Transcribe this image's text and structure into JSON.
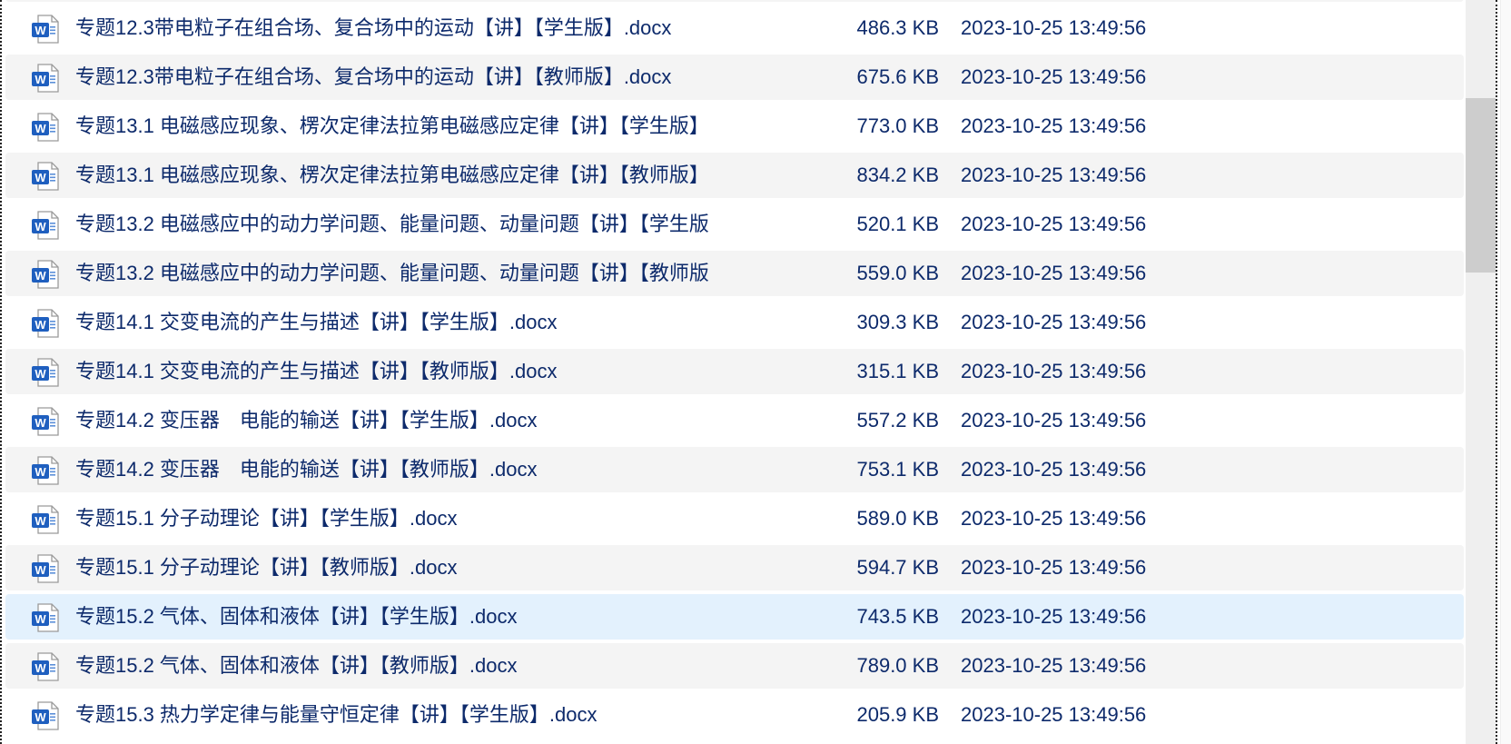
{
  "colors": {
    "text": "#0d2a6b",
    "row_alt": "#f4f4f4",
    "row_selected": "#e3f1fd",
    "word_icon": "#1f5fbf"
  },
  "icon": "word-docx-icon",
  "selected_index": 12,
  "scrollbar": {
    "thumb_position_fraction": 0.13
  },
  "files": [
    {
      "name": "专题12.3带电粒子在组合场、复合场中的运动【讲】【学生版】.docx",
      "size": "486.3 KB",
      "date": "2023-10-25 13:49:56"
    },
    {
      "name": "专题12.3带电粒子在组合场、复合场中的运动【讲】【教师版】.docx",
      "size": "675.6 KB",
      "date": "2023-10-25 13:49:56"
    },
    {
      "name": "专题13.1 电磁感应现象、楞次定律法拉第电磁感应定律【讲】【学生版】",
      "size": "773.0 KB",
      "date": "2023-10-25 13:49:56"
    },
    {
      "name": "专题13.1 电磁感应现象、楞次定律法拉第电磁感应定律【讲】【教师版】",
      "size": "834.2 KB",
      "date": "2023-10-25 13:49:56"
    },
    {
      "name": "专题13.2 电磁感应中的动力学问题、能量问题、动量问题【讲】【学生版",
      "size": "520.1 KB",
      "date": "2023-10-25 13:49:56"
    },
    {
      "name": "专题13.2 电磁感应中的动力学问题、能量问题、动量问题【讲】【教师版",
      "size": "559.0 KB",
      "date": "2023-10-25 13:49:56"
    },
    {
      "name": "专题14.1 交变电流的产生与描述【讲】【学生版】.docx",
      "size": "309.3 KB",
      "date": "2023-10-25 13:49:56"
    },
    {
      "name": "专题14.1 交变电流的产生与描述【讲】【教师版】.docx",
      "size": "315.1 KB",
      "date": "2023-10-25 13:49:56"
    },
    {
      "name": "专题14.2 变压器　电能的输送【讲】【学生版】.docx",
      "size": "557.2 KB",
      "date": "2023-10-25 13:49:56"
    },
    {
      "name": "专题14.2 变压器　电能的输送【讲】【教师版】.docx",
      "size": "753.1 KB",
      "date": "2023-10-25 13:49:56"
    },
    {
      "name": "专题15.1 分子动理论【讲】【学生版】.docx",
      "size": "589.0 KB",
      "date": "2023-10-25 13:49:56"
    },
    {
      "name": "专题15.1 分子动理论【讲】【教师版】.docx",
      "size": "594.7 KB",
      "date": "2023-10-25 13:49:56"
    },
    {
      "name": "专题15.2 气体、固体和液体【讲】【学生版】.docx",
      "size": "743.5 KB",
      "date": "2023-10-25 13:49:56"
    },
    {
      "name": "专题15.2 气体、固体和液体【讲】【教师版】.docx",
      "size": "789.0 KB",
      "date": "2023-10-25 13:49:56"
    },
    {
      "name": "专题15.3 热力学定律与能量守恒定律【讲】【学生版】.docx",
      "size": "205.9 KB",
      "date": "2023-10-25 13:49:56"
    }
  ]
}
